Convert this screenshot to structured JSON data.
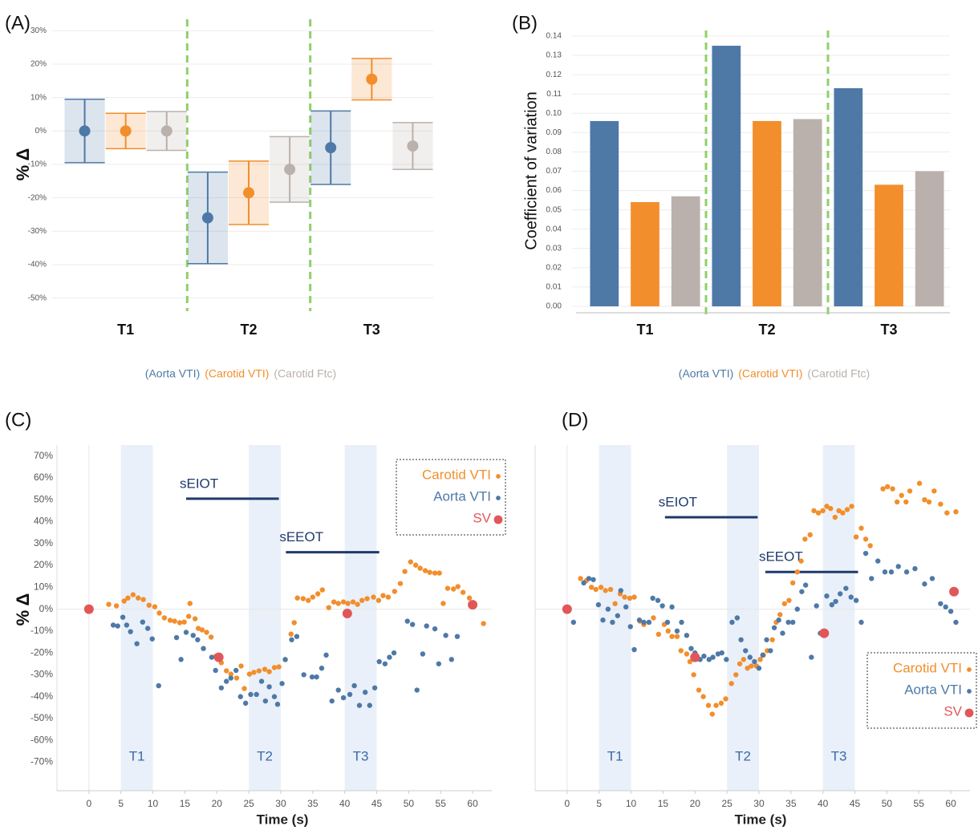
{
  "chart_data": [
    {
      "type": "interval",
      "panel_label": "(A)",
      "y_label": "% Δ",
      "categories": [
        "T1",
        "T2",
        "T3"
      ],
      "series": [
        {
          "name": "(Aorta VTI)",
          "color": "#4e79a7",
          "values": [
            0,
            -26,
            -5
          ],
          "errors": [
            9.5,
            13.7,
            11
          ]
        },
        {
          "name": "(Carotid VTI)",
          "color": "#f28e2b",
          "values": [
            0,
            -18.5,
            15.5
          ],
          "errors": [
            5.3,
            9.5,
            6.2
          ]
        },
        {
          "name": "(Carotid Ftc)",
          "color": "#bab0ac",
          "values": [
            0,
            -11.5,
            -4.5
          ],
          "errors": [
            5.8,
            9.8,
            7
          ]
        }
      ],
      "ylim": [
        -52,
        32
      ],
      "yticks": [
        {
          "value": -50,
          "label": "-50%"
        },
        {
          "value": -40,
          "label": "-40%"
        },
        {
          "value": -30,
          "label": "-30%"
        },
        {
          "value": -20,
          "label": "-20%"
        },
        {
          "value": -10,
          "label": "-10%"
        },
        {
          "value": 0,
          "label": "0%"
        },
        {
          "value": 10,
          "label": "10%"
        },
        {
          "value": 20,
          "label": "20%"
        },
        {
          "value": 30,
          "label": "30%"
        }
      ],
      "grid": true
    },
    {
      "type": "bar",
      "panel_label": "(B)",
      "y_label": "Coefficient of variation",
      "categories": [
        "T1",
        "T2",
        "T3"
      ],
      "series": [
        {
          "name": "(Aorta VTI)",
          "color": "#4e79a7",
          "values": [
            0.096,
            0.135,
            0.113
          ]
        },
        {
          "name": "(Carotid VTI)",
          "color": "#f28e2b",
          "values": [
            0.054,
            0.096,
            0.063
          ]
        },
        {
          "name": "(Carotid Ftc)",
          "color": "#bab0ac",
          "values": [
            0.057,
            0.097,
            0.07
          ]
        }
      ],
      "ylim": [
        0,
        0.14
      ],
      "yticks": [
        {
          "value": 0,
          "label": "0.00"
        },
        0.01,
        0.02,
        0.03,
        0.04,
        0.05,
        0.06,
        0.07,
        0.08,
        0.09,
        {
          "value": 0.1,
          "label": "0.10"
        },
        0.11,
        0.12,
        0.13,
        0.14
      ],
      "grid": true
    },
    {
      "type": "scatter",
      "panel_label": "(C)",
      "x_label": "Time (s)",
      "y_label": "% Δ",
      "legend": "upper right",
      "xlim": [
        -5,
        63
      ],
      "xticks": [
        0,
        5,
        10,
        15,
        20,
        25,
        30,
        35,
        40,
        45,
        50,
        55,
        60
      ],
      "ylim": [
        -83,
        75
      ],
      "yticks": [
        {
          "value": -70,
          "label": "-70%"
        },
        {
          "value": -60,
          "label": "-60%"
        },
        {
          "value": -50,
          "label": "-50%"
        },
        {
          "value": -40,
          "label": "-40%"
        },
        {
          "value": -30,
          "label": "-30%"
        },
        {
          "value": -20,
          "label": "-20%"
        },
        {
          "value": -10,
          "label": "-10%"
        },
        {
          "value": 0,
          "label": "0%"
        },
        {
          "value": 10,
          "label": "10%"
        },
        {
          "value": 20,
          "label": "20%"
        },
        {
          "value": 30,
          "label": "30%"
        },
        {
          "value": 40,
          "label": "40%"
        },
        {
          "value": 50,
          "label": "50%"
        },
        {
          "value": 60,
          "label": "60%"
        },
        {
          "value": 70,
          "label": "70%"
        }
      ],
      "bands": [
        {
          "label": "T1",
          "start": 5,
          "end": 10
        },
        {
          "label": "T2",
          "start": 25,
          "end": 30
        },
        {
          "label": "T3",
          "start": 40,
          "end": 45
        }
      ],
      "annotations": [
        {
          "label": "sEIOT",
          "start": 15.2,
          "end": 29.7,
          "y": 50.5
        },
        {
          "label": "sEEOT",
          "start": 30.8,
          "end": 45.4,
          "y": 26
        }
      ],
      "series": [
        {
          "name": "Carotid VTI",
          "color": "#f28e2b",
          "size": 3.2,
          "x": [
            3.1,
            4.3,
            5.5,
            6.1,
            6.9,
            7.7,
            8.5,
            9.4,
            10.3,
            11,
            11.8,
            12.7,
            13.4,
            14.2,
            14.9,
            15.6,
            15.8,
            16.6,
            17.1,
            17.7,
            18.4,
            19.1,
            19.8,
            20.7,
            21.5,
            22.2,
            23.1,
            23.8,
            24.3,
            25.1,
            25.8,
            26.6,
            27.5,
            28.2,
            29,
            29.7,
            30.7,
            31.6,
            32.1,
            32.6,
            33.5,
            34.3,
            35,
            35.8,
            36.5,
            37.5,
            38.3,
            39,
            39.8,
            40.5,
            41.3,
            42,
            42.7,
            43.5,
            44.5,
            45.3,
            46,
            46.8,
            47.8,
            48.7,
            49.4,
            50.3,
            51.1,
            51.8,
            52.6,
            53.3,
            54.1,
            54.8,
            55.4,
            56.1,
            57,
            57.7,
            58.5,
            59.5,
            61.7
          ],
          "values": [
            2.2,
            1.5,
            3.7,
            5.1,
            6.6,
            5.1,
            4.4,
            1.8,
            1.1,
            -1.8,
            -4,
            -5.1,
            -5.5,
            -6.2,
            -5.9,
            -3.3,
            2.6,
            -4.4,
            -8.8,
            -9.5,
            -10.6,
            -12.8,
            -21.6,
            -24.5,
            -28.2,
            -29.7,
            -31.5,
            -26,
            -36.3,
            -29.7,
            -28.9,
            -28.2,
            -27.5,
            -28.6,
            -26.7,
            -26.4,
            -23.1,
            -11.4,
            -6.2,
            5.1,
            4.8,
            4,
            5.5,
            7,
            8.8,
            0.7,
            3.3,
            2.6,
            3.3,
            2.6,
            3.3,
            2.2,
            4,
            4.8,
            5.5,
            4,
            6.2,
            5.5,
            8.1,
            11.7,
            17.2,
            21.6,
            20.1,
            18.7,
            17.6,
            16.8,
            16.5,
            16.5,
            2.6,
            9.5,
            9.2,
            10.3,
            7.7,
            5.1,
            -6.6
          ]
        },
        {
          "name": "Aorta VTI",
          "color": "#4e79a7",
          "size": 3.2,
          "x": [
            3.8,
            4.5,
            5.3,
            5.9,
            6.5,
            7.5,
            8.4,
            9.2,
            9.9,
            10.9,
            13.7,
            14.4,
            15.2,
            16.3,
            17,
            17.9,
            19.2,
            19.8,
            20.7,
            21.5,
            22.2,
            23,
            23.7,
            24.5,
            25.3,
            26.2,
            27,
            27.6,
            28.2,
            29,
            29.5,
            30.2,
            30.7,
            31.7,
            32.5,
            33.6,
            34.9,
            35.6,
            36.4,
            37.1,
            38,
            39,
            39.8,
            40.8,
            41.5,
            42.3,
            43.2,
            43.9,
            44.7,
            45.4,
            46.3,
            47,
            47.7,
            49.8,
            50.6,
            51.3,
            52.2,
            52.8,
            54.1,
            54.7,
            55.8,
            56.7,
            57.6
          ],
          "values": [
            -7.3,
            -7.7,
            -3.7,
            -7.3,
            -10.3,
            -15.8,
            -5.9,
            -8.8,
            -13.6,
            -35,
            -13,
            -23,
            -10.6,
            -12,
            -14,
            -18,
            -22,
            -28,
            -36,
            -33,
            -31.5,
            -28,
            -40,
            -43,
            -39,
            -39,
            -33,
            -42,
            -35.5,
            -40,
            -43.5,
            -34,
            -23,
            -14,
            -12.5,
            -30,
            -31,
            -31,
            -27,
            -21,
            -42,
            -37,
            -40.5,
            -39,
            -35,
            -44,
            -38,
            -44,
            -36,
            -24,
            -25,
            -22,
            -20,
            -5.5,
            -7,
            -37,
            -20.5,
            -7.7,
            -9,
            -25,
            -12,
            -23,
            -12.5
          ]
        },
        {
          "name": "SV",
          "color": "#e15759",
          "size": 6,
          "x": [
            0,
            20.3,
            40.4,
            60
          ],
          "values": [
            0,
            -22,
            -2,
            2
          ]
        }
      ]
    },
    {
      "type": "scatter",
      "panel_label": "(D)",
      "x_label": "Time (s)",
      "legend": "lower right",
      "xlim": [
        -5,
        63
      ],
      "xticks": [
        0,
        5,
        10,
        15,
        20,
        25,
        30,
        35,
        40,
        45,
        50,
        55,
        60
      ],
      "ylim": [
        -83,
        75
      ],
      "bands": [
        {
          "label": "T1",
          "start": 5,
          "end": 10
        },
        {
          "label": "T2",
          "start": 25,
          "end": 30
        },
        {
          "label": "T3",
          "start": 40,
          "end": 45
        }
      ],
      "annotations": [
        {
          "label": "sEIOT",
          "start": 15.3,
          "end": 29.8,
          "y": 42
        },
        {
          "label": "sEEOT",
          "start": 31,
          "end": 45.5,
          "y": 17
        }
      ],
      "series": [
        {
          "name": "Carotid VTI",
          "color": "#f28e2b",
          "size": 3.2,
          "x": [
            2.1,
            3,
            3.8,
            4.5,
            5.3,
            6,
            6.8,
            7.5,
            8.3,
            9,
            9.8,
            10.5,
            11.4,
            12,
            12.8,
            13.5,
            14.3,
            15.2,
            15.8,
            16.4,
            17.2,
            17.8,
            18.7,
            19.2,
            19.8,
            20.6,
            21.3,
            22.1,
            22.7,
            23.3,
            24.1,
            24.8,
            25.7,
            26.4,
            27,
            27.6,
            28.2,
            28.8,
            29.6,
            30.2,
            30.7,
            31.3,
            32.1,
            32.7,
            33.3,
            34,
            34.7,
            35.3,
            36,
            36.6,
            37.2,
            38,
            38.6,
            39.3,
            40,
            40.6,
            41.2,
            41.9,
            42.5,
            43.1,
            43.8,
            44.5,
            45.2,
            46,
            46.7,
            47.4,
            49.4,
            50.1,
            50.9,
            51.6,
            52.3,
            53,
            53.6,
            55.1,
            55.9,
            56.6,
            57.4,
            58.4,
            59.4,
            60.8
          ],
          "values": [
            14,
            13,
            10,
            9,
            10,
            8.5,
            9,
            2.5,
            7,
            5.5,
            5,
            5.5,
            -5.5,
            -7,
            -6,
            -4,
            -11.5,
            -7,
            -10,
            -12.5,
            -12.5,
            -19,
            -20.5,
            -24,
            -30,
            -37,
            -40,
            -44,
            -48,
            -44,
            -43,
            -41,
            -34,
            -30,
            -25,
            -23,
            -27,
            -26,
            -26,
            -23,
            -21,
            -19,
            -14,
            -6,
            -2.5,
            2.5,
            4,
            12,
            17,
            22,
            32,
            34,
            45,
            44,
            45,
            47,
            46,
            42,
            45,
            44,
            45.5,
            47,
            33,
            37,
            32,
            29,
            55,
            56,
            55,
            49,
            52,
            49,
            54,
            57.5,
            50,
            49,
            54,
            48,
            44,
            44.5
          ]
        },
        {
          "name": "Aorta VTI",
          "color": "#4e79a7",
          "size": 3.2,
          "x": [
            1,
            2.6,
            3.4,
            4.1,
            4.9,
            5.6,
            6.4,
            7.1,
            7.9,
            8.4,
            9.2,
            9.9,
            10.5,
            11.3,
            12,
            12.8,
            13.4,
            14.2,
            14.9,
            15.7,
            16.4,
            17.2,
            17.9,
            18.7,
            19.4,
            20,
            20.8,
            21.4,
            22.2,
            22.8,
            23.6,
            24.2,
            24.9,
            25.8,
            26.6,
            27.2,
            27.9,
            28.6,
            29.3,
            30,
            30.6,
            31.2,
            31.8,
            32.4,
            33.1,
            33.7,
            34.6,
            35.3,
            36,
            36.7,
            37.3,
            38.2,
            39,
            39.6,
            40.6,
            41.4,
            42,
            42.7,
            43.6,
            44.4,
            45.2,
            46,
            46.7,
            47.6,
            48.6,
            49.7,
            50.7,
            51.8,
            53.1,
            54.4,
            55.9,
            57.1,
            58.4,
            59.2,
            60,
            60.8
          ],
          "values": [
            -6,
            12,
            14,
            13.5,
            2,
            -5,
            0,
            -6,
            -3,
            8.5,
            1,
            -8,
            -18.5,
            -5,
            -6,
            -6,
            5,
            4,
            1.5,
            -6,
            1,
            -10,
            -6,
            -12,
            -18,
            -20,
            -23,
            -21.5,
            -23,
            -22,
            -20.5,
            -20,
            -23,
            -6,
            -4,
            -14,
            -19,
            -22,
            -24,
            -27,
            -21,
            -14,
            -19,
            -8.5,
            -5,
            -11,
            -6,
            -6,
            0,
            8,
            11,
            -22,
            1.5,
            -11,
            6,
            2,
            3.5,
            7,
            9.5,
            5.5,
            4,
            -6,
            25.5,
            14,
            22,
            17,
            17,
            19.5,
            17,
            18.5,
            11.5,
            14,
            2.5,
            1,
            -1,
            -6
          ]
        },
        {
          "name": "SV",
          "color": "#e15759",
          "size": 6,
          "x": [
            0,
            20,
            40.2,
            60.5
          ],
          "values": [
            0,
            -22,
            -11,
            8
          ]
        }
      ]
    }
  ]
}
